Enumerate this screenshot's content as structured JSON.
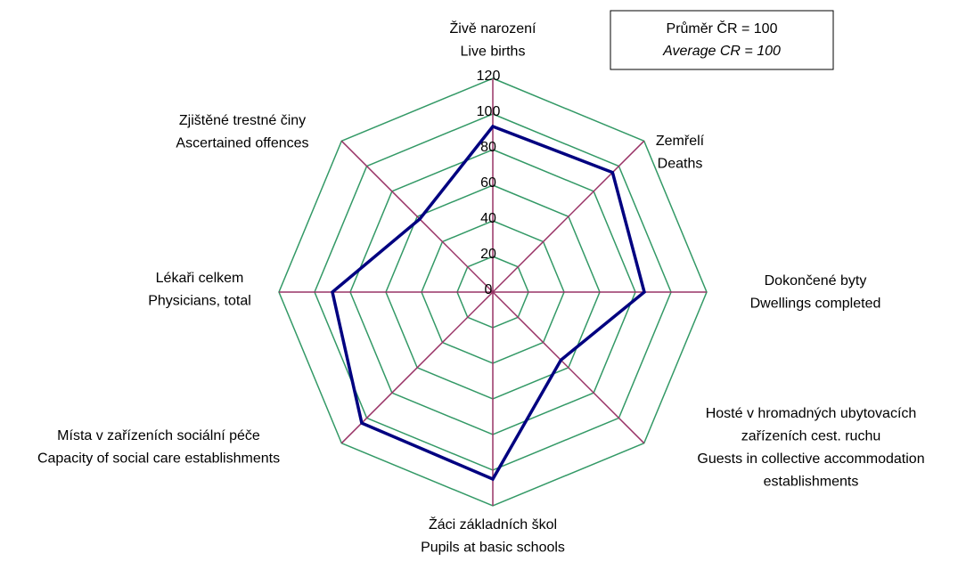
{
  "chart_data": {
    "type": "radar",
    "categories": [
      [
        "Živě narození",
        "Live births"
      ],
      [
        "Zemřelí",
        "Deaths"
      ],
      [
        "Dokončené byty",
        "Dwellings completed"
      ],
      [
        "Hosté v hromadných ubytovacích",
        "zařízeních cest. ruchu",
        "Guests in collective accommodation",
        "establishments"
      ],
      [
        "Žáci základních škol",
        "Pupils at basic schools"
      ],
      [
        "Místa v zařízeních sociální péče",
        "Capacity of social care establishments"
      ],
      [
        "Lékaři celkem",
        "Physicians, total"
      ],
      [
        "Zjištěné trestné činy",
        "Ascertained offences"
      ]
    ],
    "values": [
      93,
      95,
      85,
      54,
      105,
      104,
      90,
      58
    ],
    "color": "#000080",
    "rlim": [
      0,
      120
    ],
    "rticks": [
      0,
      20,
      40,
      60,
      80,
      100,
      120
    ],
    "grid_color": "#339966",
    "spoke_color": "#993366",
    "legend": [
      "Průměr  ČR = 100",
      "Average CR = 100"
    ]
  }
}
